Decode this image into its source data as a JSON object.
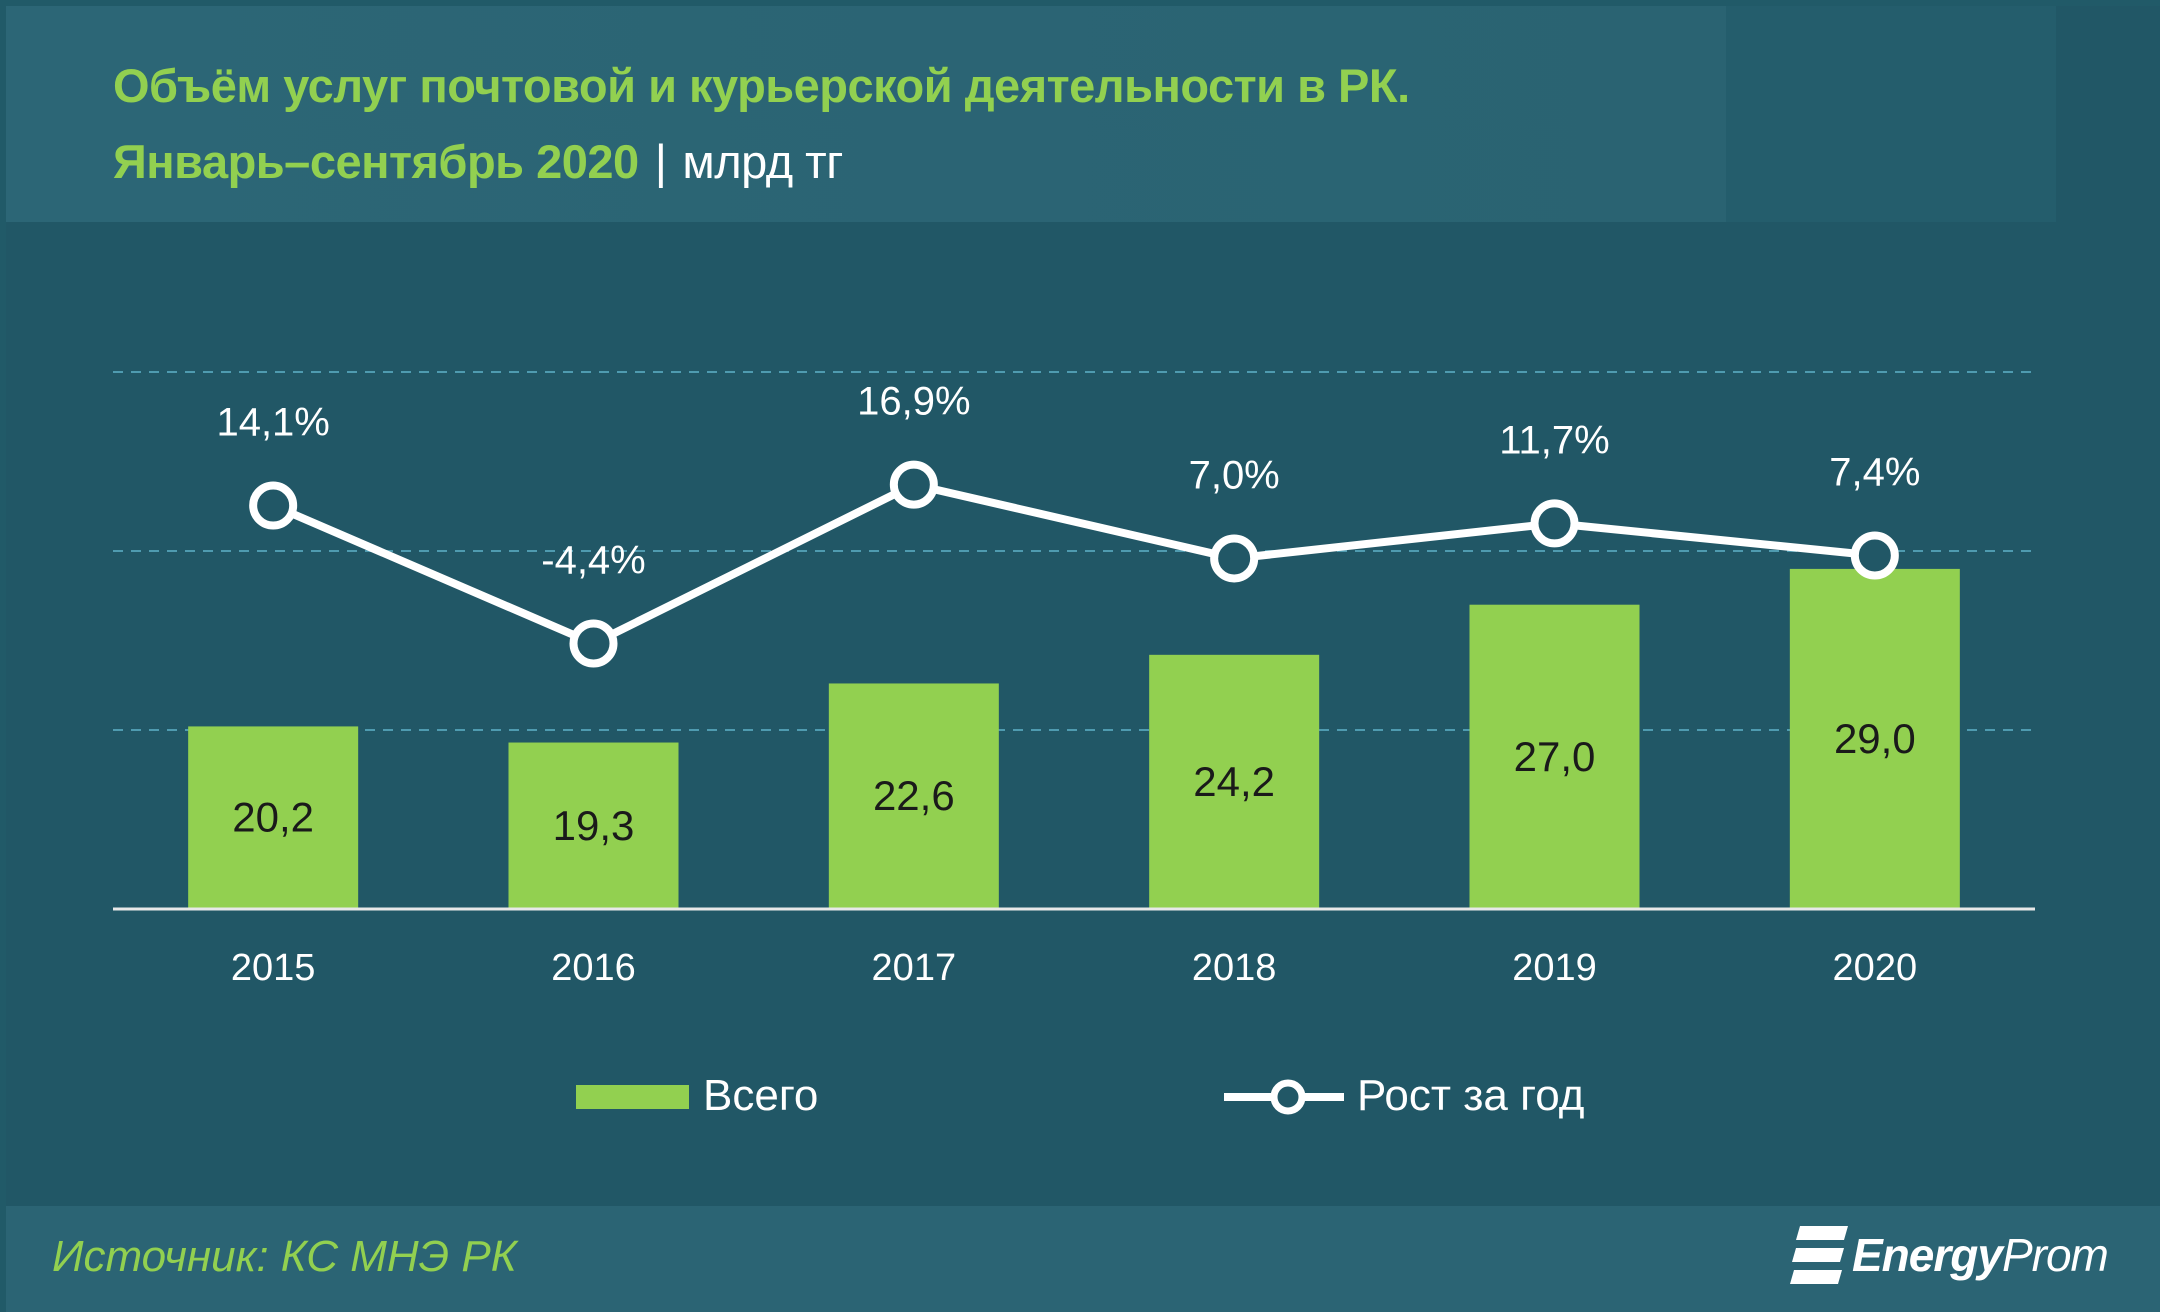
{
  "title_line1": "Объём услуг почтовой и курьерской деятельности в РК.",
  "title_line2": "Январь–сентябрь 2020",
  "unit_separator": "|",
  "unit": "млрд тг",
  "source": "Источник: КС МНЭ РК",
  "logo": {
    "text_bold": "Energy",
    "text_regular": "Prom"
  },
  "colors": {
    "background": "#215766",
    "bar": "#92d050",
    "line": "#ffffff",
    "title": "#92d050",
    "gridline": "#4f9bb0"
  },
  "chart_data": {
    "type": "bar",
    "categories": [
      "2015",
      "2016",
      "2017",
      "2018",
      "2019",
      "2020"
    ],
    "series": [
      {
        "name": "Всего",
        "type": "bar",
        "values": [
          20.2,
          19.3,
          22.6,
          24.2,
          27.0,
          29.0
        ],
        "labels": [
          "20,2",
          "19,3",
          "22,6",
          "24,2",
          "27,0",
          "29,0"
        ]
      },
      {
        "name": "Рост за год",
        "type": "line",
        "axis": "secondary",
        "values": [
          14.1,
          -4.4,
          16.9,
          7.0,
          11.7,
          7.4
        ],
        "labels": [
          "14,1%",
          "-4,4%",
          "16,9%",
          "7,0%",
          "11,7%",
          "7,4%"
        ]
      }
    ],
    "ylim": [
      10,
      40
    ],
    "ylim_secondary": [
      -40,
      32
    ],
    "grid": "horizontal dashed",
    "legend": "bottom",
    "xlabel": "",
    "ylabel": ""
  }
}
